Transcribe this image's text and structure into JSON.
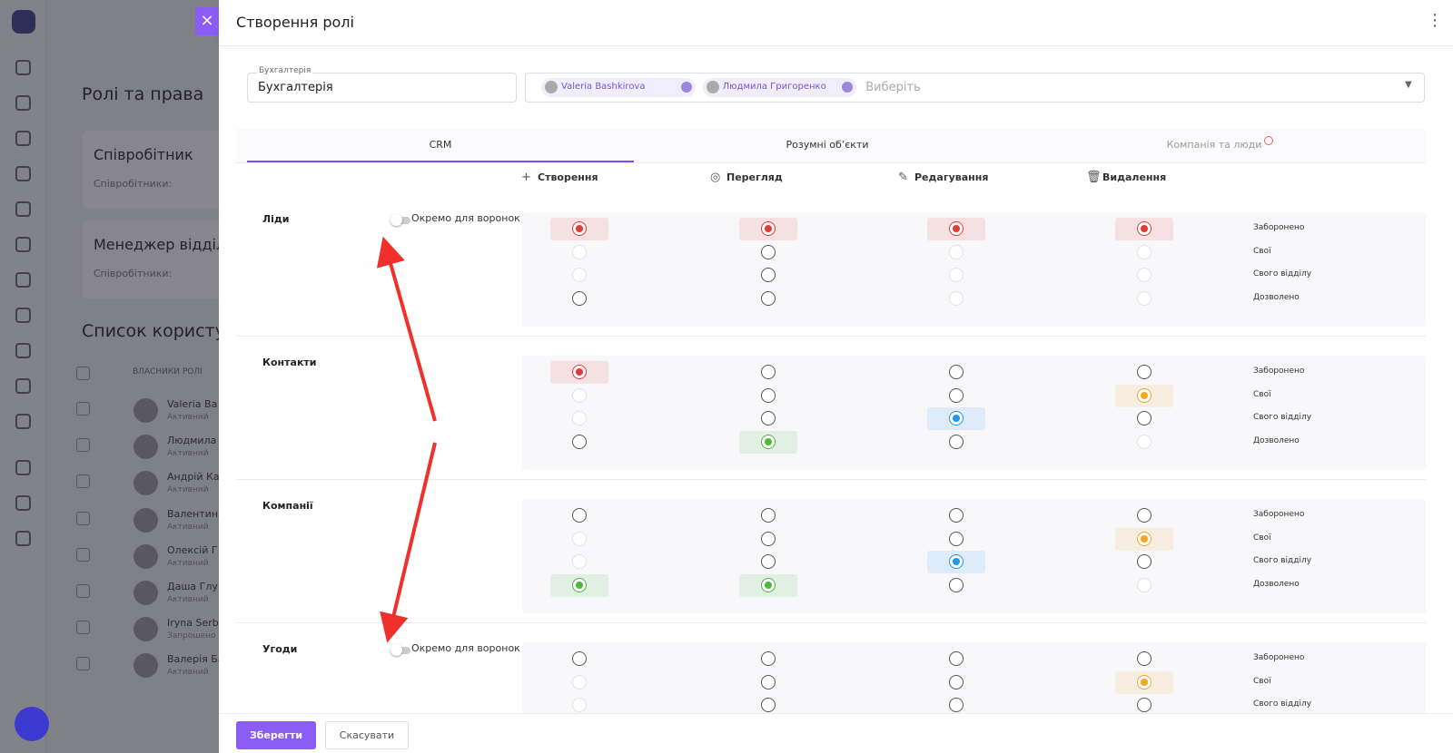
{
  "background": {
    "title": "Ролі та права",
    "cards": [
      {
        "title": "Співробітник",
        "label": "Співробітники:"
      },
      {
        "title": "Менеджер відділ",
        "label": "Співробітники:"
      }
    ],
    "list_title": "Список користу",
    "column": "ВЛАСНИКИ РОЛІ",
    "users": [
      {
        "name": "Valeria Ba",
        "status": "Активний"
      },
      {
        "name": "Людмила",
        "status": "Активний"
      },
      {
        "name": "Андрій Ка",
        "status": "Активний"
      },
      {
        "name": "Валентина",
        "status": "Активний"
      },
      {
        "name": "Олексій Г",
        "status": "Активний"
      },
      {
        "name": "Даша Глу",
        "status": "Активний"
      },
      {
        "name": "Iryna Serb",
        "status": "Запрошено"
      },
      {
        "name": "Валерія Ба",
        "status": "Активний"
      }
    ]
  },
  "modal": {
    "title": "Створення ролі",
    "role_field": {
      "label": "Бухгалтерія",
      "value": "Бухгалтерія"
    },
    "members": [
      "Valeria Bashkirova",
      "Людмила Григоренко"
    ],
    "members_placeholder": "Виберіть",
    "tabs": [
      "CRM",
      "Розумні об’єкти",
      "Компанія та люди"
    ],
    "active_tab": 0,
    "actions": [
      "Створення",
      "Перегляд",
      "Редагування",
      "Видалення"
    ],
    "levels": [
      {
        "label": "Заборонено",
        "color": "#e53935"
      },
      {
        "label": "Свої",
        "color": "#f5a623"
      },
      {
        "label": "Свого відділу",
        "color": "#2196f3"
      },
      {
        "label": "Дозволено",
        "color": "#4cb83c"
      }
    ],
    "sections": [
      {
        "name": "Ліди",
        "toggle": "Окремо для воронок",
        "selected": [
          0,
          0,
          0,
          0
        ],
        "disabled": [
          [
            1,
            2
          ],
          [],
          [
            1,
            2,
            3
          ],
          [
            1,
            2,
            3
          ]
        ]
      },
      {
        "name": "Контакти",
        "selected": [
          0,
          3,
          2,
          1
        ],
        "disabled": [
          [
            1,
            2
          ],
          [],
          [],
          [
            3
          ]
        ]
      },
      {
        "name": "Компанії",
        "selected": [
          3,
          3,
          2,
          1
        ],
        "disabled": [
          [
            1,
            2
          ],
          [],
          [],
          [
            3
          ]
        ]
      },
      {
        "name": "Угоди",
        "toggle": "Окремо для воронок",
        "selected": [
          null,
          null,
          null,
          1
        ],
        "disabled": [
          [
            1,
            2
          ],
          [],
          [],
          []
        ]
      }
    ],
    "buttons": {
      "save": "Зберегти",
      "cancel": "Скасувати"
    }
  }
}
